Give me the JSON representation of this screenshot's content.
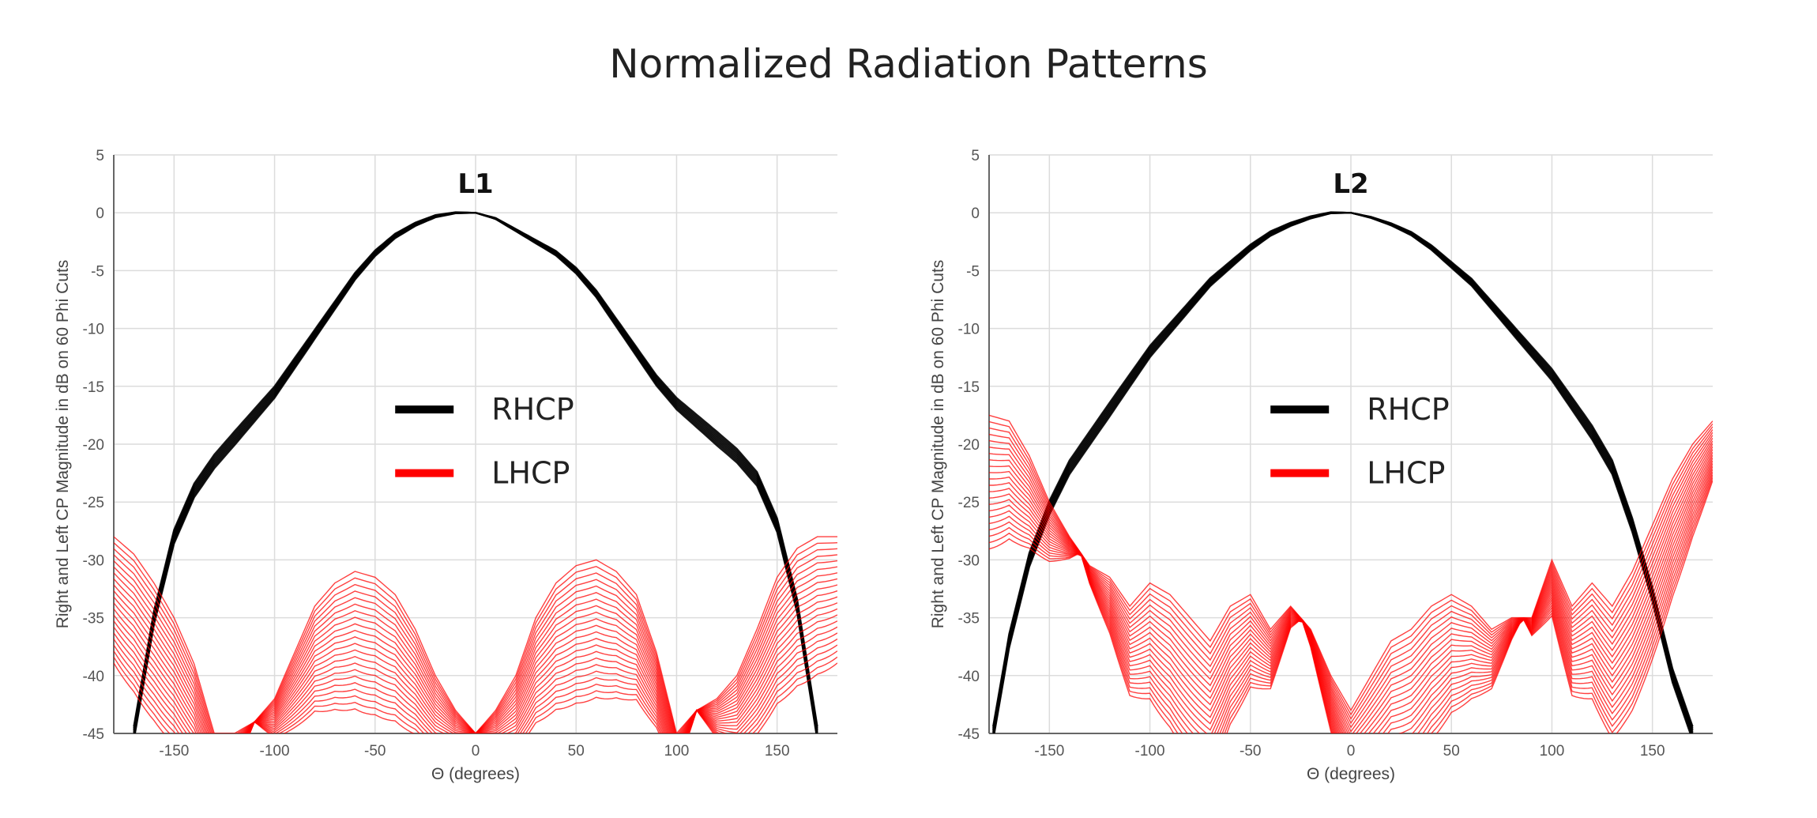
{
  "page_title": "Normalized Radiation Patterns",
  "colors": {
    "rhcp": "#000000",
    "lhcp": "#ff0000",
    "grid": "#dcdcdc",
    "axis": "#666666"
  },
  "chart_data": [
    {
      "type": "line",
      "title": "L1",
      "xlabel": "Θ (degrees)",
      "ylabel": "Right and Left CP Magnitude in dB on 60 Phi Cuts",
      "xlim": [
        -180,
        180
      ],
      "ylim": [
        -45,
        5
      ],
      "xticks": [
        -150,
        -100,
        -50,
        0,
        50,
        100,
        150
      ],
      "yticks": [
        5,
        0,
        -5,
        -10,
        -15,
        -20,
        -25,
        -30,
        -35,
        -40,
        -45
      ],
      "grid": true,
      "legend": {
        "placement": "center",
        "entries": [
          "RHCP",
          "LHCP"
        ]
      },
      "series": [
        {
          "name": "RHCP",
          "x": [
            -170,
            -160,
            -150,
            -140,
            -130,
            -120,
            -110,
            -100,
            -90,
            -80,
            -70,
            -60,
            -50,
            -40,
            -30,
            -20,
            -10,
            0,
            10,
            20,
            30,
            40,
            50,
            60,
            70,
            80,
            90,
            100,
            110,
            120,
            130,
            140,
            150,
            160,
            170
          ],
          "y": [
            -45,
            -35,
            -28,
            -24,
            -21.5,
            -19.5,
            -17.5,
            -15.5,
            -13,
            -10.5,
            -8,
            -5.5,
            -3.5,
            -2,
            -1,
            -0.3,
            0,
            0,
            -0.5,
            -1.5,
            -2.5,
            -3.5,
            -5,
            -7,
            -9.5,
            -12,
            -14.5,
            -16.5,
            -18,
            -19.5,
            -21,
            -23,
            -27,
            -34,
            -45
          ]
        },
        {
          "name": "LHCP",
          "x": [
            -180,
            -170,
            -160,
            -150,
            -140,
            -130,
            -120,
            -110,
            -100,
            -90,
            -80,
            -70,
            -60,
            -50,
            -40,
            -30,
            -20,
            -10,
            0,
            10,
            20,
            30,
            40,
            50,
            60,
            70,
            80,
            90,
            100,
            110,
            120,
            130,
            140,
            150,
            160,
            170,
            180
          ],
          "y": [
            -28,
            -29.5,
            -32,
            -35,
            -39,
            -45,
            -45,
            -44,
            -42,
            -38,
            -34,
            -32,
            -31,
            -31.5,
            -33,
            -36,
            -40,
            -43,
            -45,
            -43,
            -40,
            -35,
            -32,
            -30.5,
            -30,
            -31,
            -33,
            -38,
            -45,
            -43,
            -42,
            -40,
            -36,
            -31.5,
            -29,
            -28,
            -28
          ]
        }
      ]
    },
    {
      "type": "line",
      "title": "L2",
      "xlabel": "Θ (degrees)",
      "ylabel": "Right and Left CP Magnitude in dB on 60 Phi Cuts",
      "xlim": [
        -180,
        180
      ],
      "ylim": [
        -45,
        5
      ],
      "xticks": [
        -150,
        -100,
        -50,
        0,
        50,
        100,
        150
      ],
      "yticks": [
        5,
        0,
        -5,
        -10,
        -15,
        -20,
        -25,
        -30,
        -35,
        -40,
        -45
      ],
      "grid": true,
      "legend": {
        "placement": "center",
        "entries": [
          "RHCP",
          "LHCP"
        ]
      },
      "series": [
        {
          "name": "RHCP",
          "x": [
            -178,
            -170,
            -160,
            -150,
            -140,
            -130,
            -120,
            -110,
            -100,
            -90,
            -80,
            -70,
            -60,
            -50,
            -40,
            -30,
            -20,
            -10,
            0,
            10,
            20,
            30,
            40,
            50,
            60,
            70,
            80,
            90,
            100,
            110,
            120,
            130,
            140,
            150,
            160,
            170
          ],
          "y": [
            -45,
            -37,
            -30,
            -25.5,
            -22,
            -19.5,
            -17,
            -14.5,
            -12,
            -10,
            -8,
            -6,
            -4.5,
            -3,
            -1.8,
            -1,
            -0.4,
            0,
            0,
            -0.4,
            -1,
            -1.8,
            -3,
            -4.5,
            -6,
            -8,
            -10,
            -12,
            -14,
            -16.5,
            -19,
            -22,
            -27,
            -33,
            -40,
            -45
          ]
        },
        {
          "name": "LHCP",
          "x": [
            -180,
            -170,
            -160,
            -150,
            -140,
            -130,
            -120,
            -110,
            -100,
            -90,
            -80,
            -70,
            -60,
            -50,
            -40,
            -30,
            -20,
            -10,
            0,
            10,
            20,
            30,
            40,
            50,
            60,
            70,
            80,
            90,
            100,
            110,
            120,
            130,
            140,
            150,
            160,
            170,
            180
          ],
          "y": [
            -17.5,
            -18,
            -21,
            -25,
            -28,
            -30.5,
            -31.5,
            -34,
            -32,
            -33,
            -35,
            -37,
            -34,
            -33,
            -36,
            -34,
            -36,
            -40,
            -43,
            -40,
            -37,
            -36,
            -34,
            -33,
            -34,
            -36,
            -35,
            -35,
            -30,
            -34,
            -32,
            -34,
            -31,
            -27,
            -23,
            -20,
            -18
          ]
        }
      ]
    }
  ]
}
